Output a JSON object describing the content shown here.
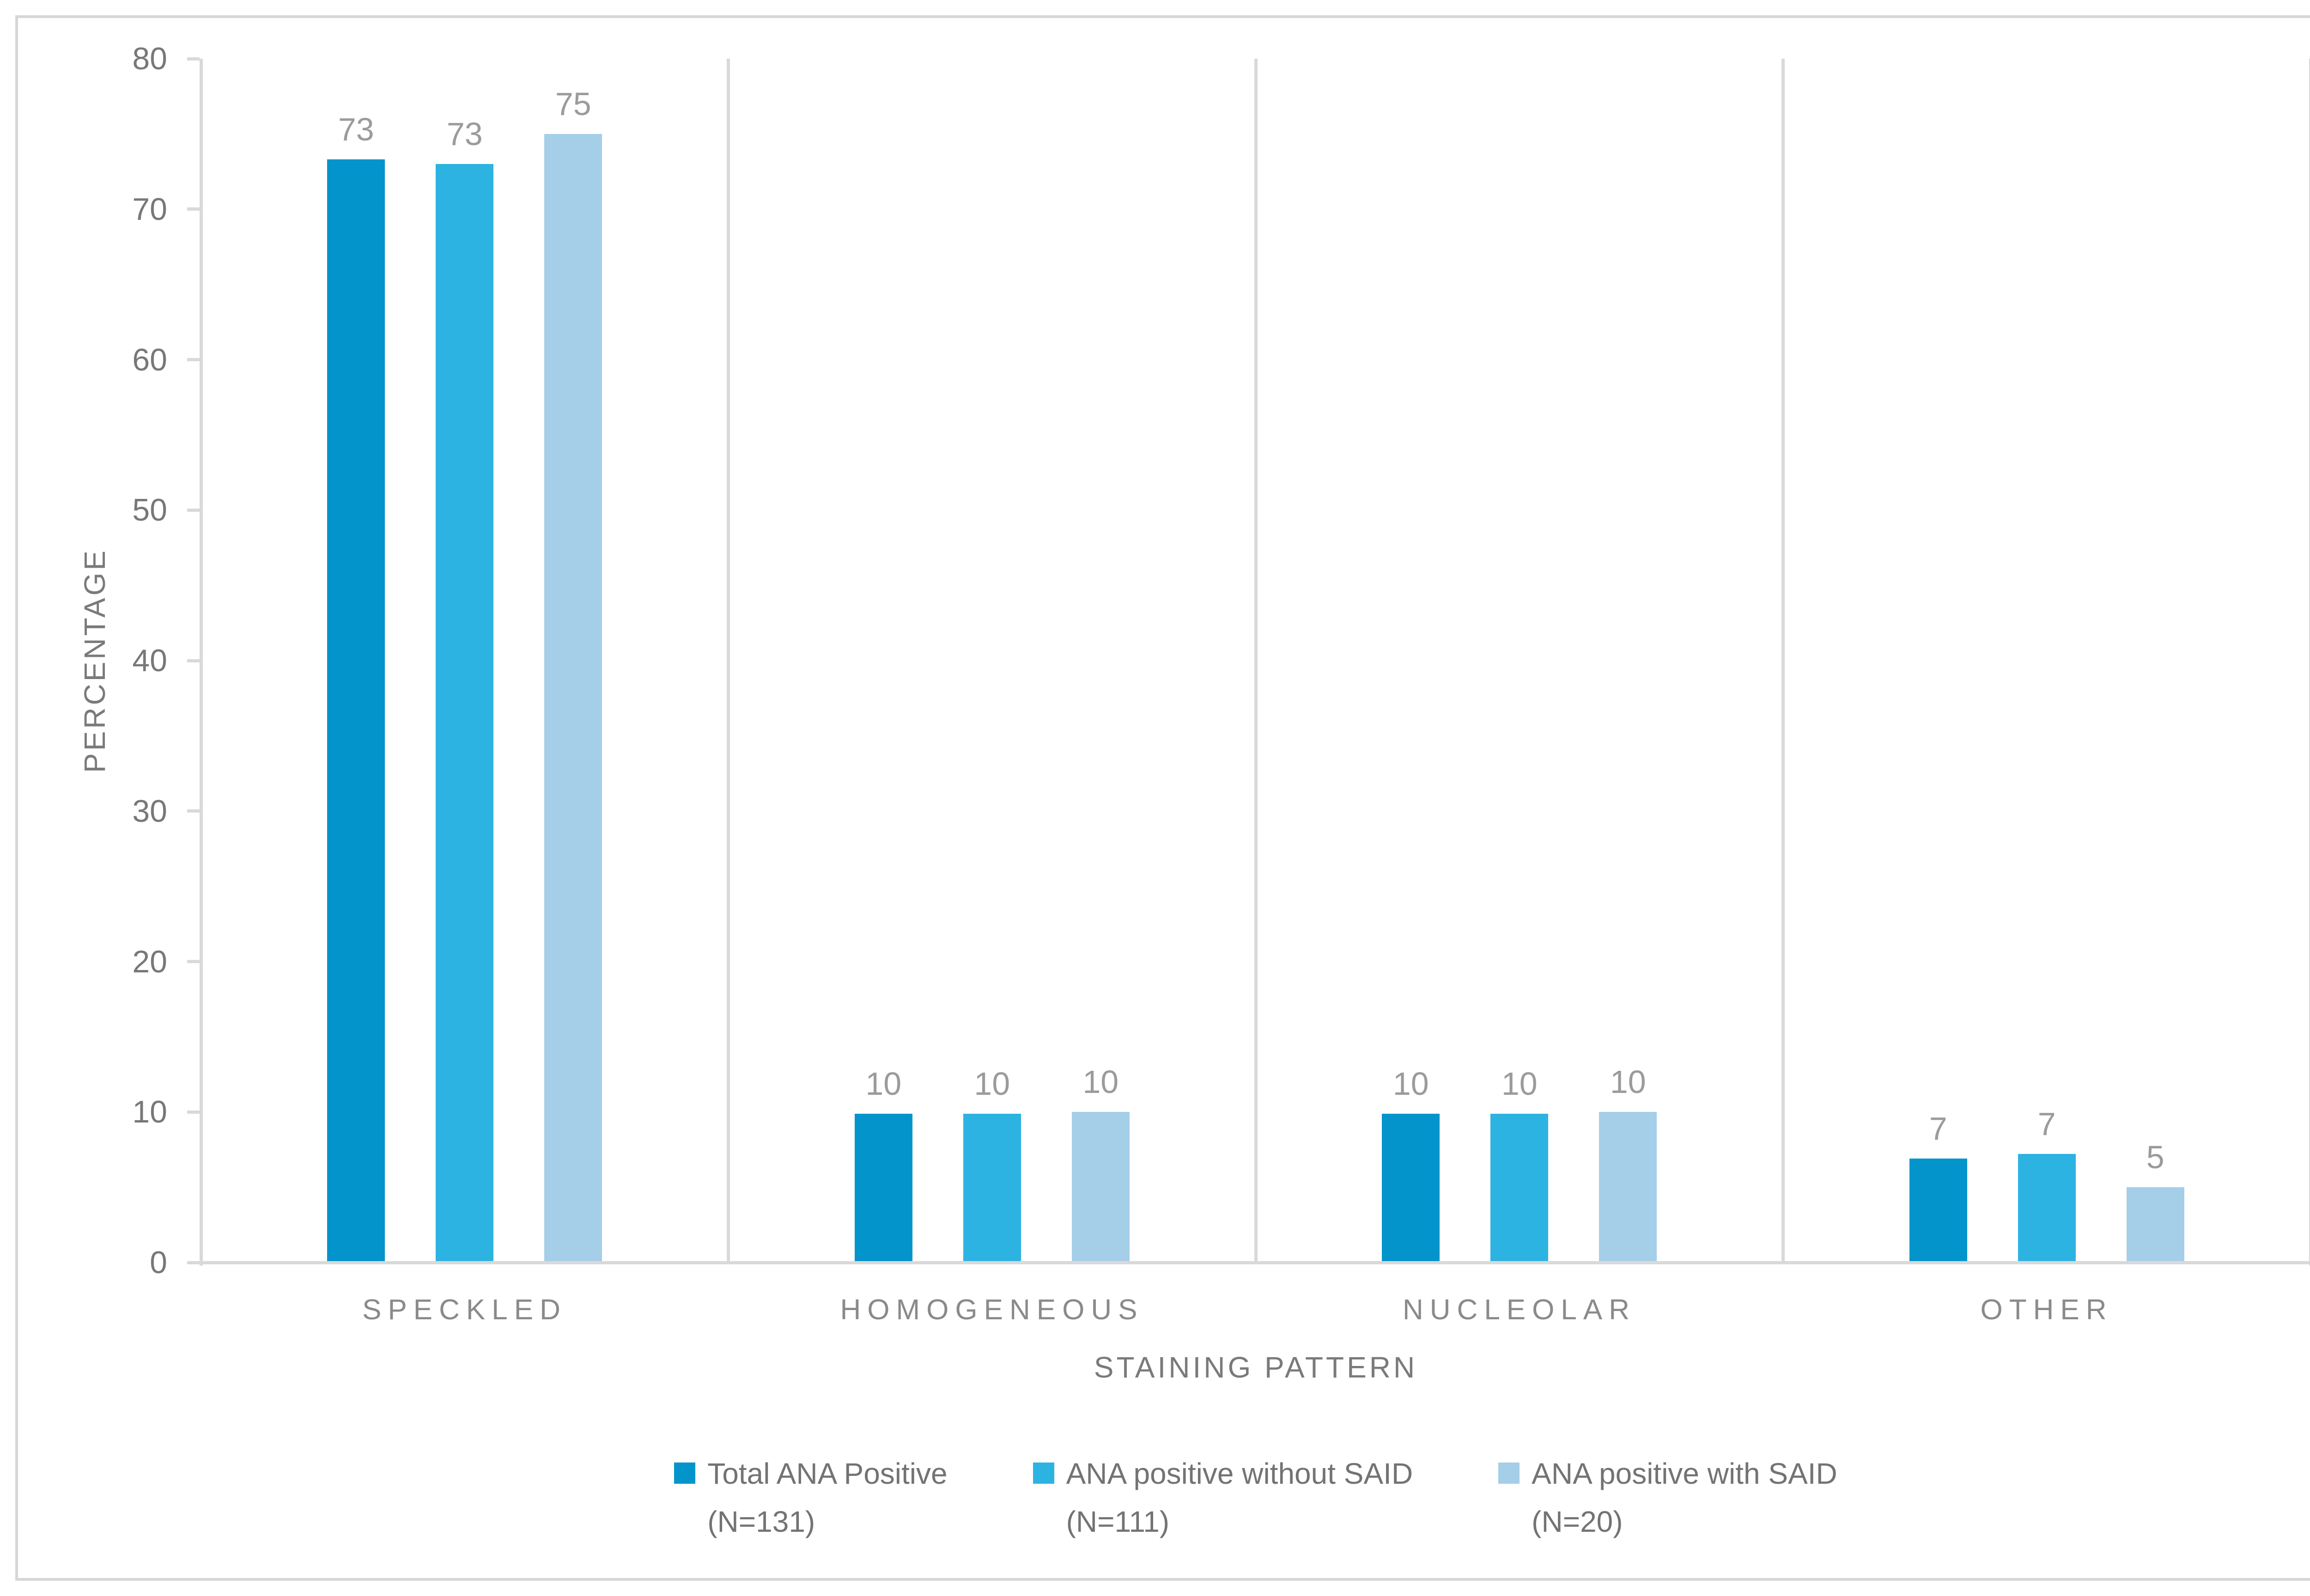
{
  "chart_data": {
    "type": "bar",
    "title": "",
    "xlabel": "STAINING PATTERN",
    "ylabel": "PERCENTAGE",
    "ylim": [
      0,
      80
    ],
    "ytick_step": 10,
    "yticks": [
      0,
      10,
      20,
      30,
      40,
      50,
      60,
      70,
      80
    ],
    "grid": "vertical category separators only, no horizontal gridlines",
    "legend_position": "bottom-center",
    "categories": [
      "SPECKLED",
      "HOMOGENEOUS",
      "NUCLEOLAR",
      "OTHER"
    ],
    "series": [
      {
        "name": "Total ANA Positive (N=131)",
        "legend_label": "Total ANA Positive",
        "legend_count": "(N=131)",
        "color": "#0394cb",
        "values": [
          73.3,
          9.9,
          9.9,
          6.9
        ],
        "data_labels": [
          "73",
          "10",
          "10",
          "7"
        ]
      },
      {
        "name": "ANA positive without SAID (N=111)",
        "legend_label": "ANA positive without SAID",
        "legend_count": "(N=111)",
        "color": "#2cb3e2",
        "values": [
          73.0,
          9.9,
          9.9,
          7.2
        ],
        "data_labels": [
          "73",
          "10",
          "10",
          "7"
        ]
      },
      {
        "name": "ANA positive with SAID (N=20)",
        "legend_label": "ANA positive with SAID",
        "legend_count": "(N=20)",
        "color": "#a5cee9",
        "values": [
          75.0,
          10.0,
          10.0,
          5.0
        ],
        "data_labels": [
          "75",
          "10",
          "10",
          "5"
        ]
      }
    ],
    "colors": {
      "axis_line": "#d9d9d9",
      "figure_border": "#d7d7d7",
      "tick_text": "#787878",
      "category_text": "#8a8a8a",
      "axis_title_text": "#7a7a7a",
      "data_label_text": "#9b9b9b",
      "legend_text": "#737373"
    }
  }
}
